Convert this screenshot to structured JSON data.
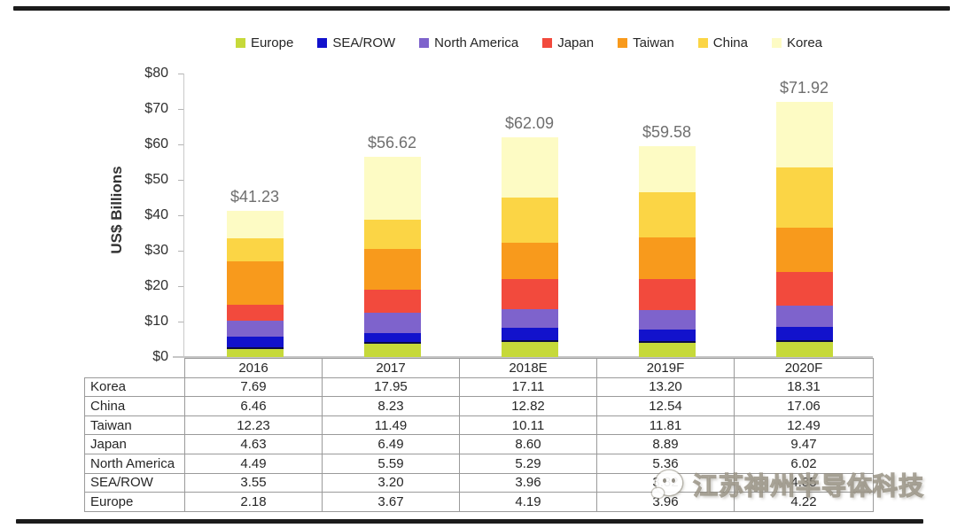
{
  "chart_data": {
    "type": "bar",
    "stacked": true,
    "title": "",
    "ylabel": "US$ Billions",
    "ylim": [
      0,
      80
    ],
    "ytick_labels": [
      "$0",
      "$10",
      "$20",
      "$30",
      "$40",
      "$50",
      "$60",
      "$70",
      "$80"
    ],
    "ytick_step": 10,
    "grid": false,
    "legend_position": "top",
    "categories": [
      "2016",
      "2017",
      "2018E",
      "2019F",
      "2020F"
    ],
    "series": [
      {
        "name": "Europe",
        "color": "#c6d93a",
        "values": [
          2.18,
          3.67,
          4.19,
          3.96,
          4.22
        ]
      },
      {
        "name": "SEA/ROW",
        "color": "#1212cc",
        "values": [
          3.55,
          3.2,
          3.96,
          3.82,
          4.35
        ]
      },
      {
        "name": "North America",
        "color": "#7e63cc",
        "values": [
          4.49,
          5.59,
          5.29,
          5.36,
          6.02
        ]
      },
      {
        "name": "Japan",
        "color": "#f24a3d",
        "values": [
          4.63,
          6.49,
          8.6,
          8.89,
          9.47
        ]
      },
      {
        "name": "Taiwan",
        "color": "#f89a1c",
        "values": [
          12.23,
          11.49,
          10.11,
          11.81,
          12.49
        ]
      },
      {
        "name": "China",
        "color": "#fbd545",
        "values": [
          6.46,
          8.23,
          12.82,
          12.54,
          17.06
        ]
      },
      {
        "name": "Korea",
        "color": "#fdfbc4",
        "values": [
          7.69,
          17.95,
          17.11,
          13.2,
          18.31
        ]
      }
    ],
    "totals": [
      "$41.23",
      "$56.62",
      "$62.09",
      "$59.58",
      "$71.92"
    ]
  },
  "table": {
    "header": [
      "",
      "2016",
      "2017",
      "2018E",
      "2019F",
      "2020F"
    ],
    "rows": [
      {
        "label": "Korea",
        "values": [
          "7.69",
          "17.95",
          "17.11",
          "13.20",
          "18.31"
        ]
      },
      {
        "label": "China",
        "values": [
          "6.46",
          "8.23",
          "12.82",
          "12.54",
          "17.06"
        ]
      },
      {
        "label": "Taiwan",
        "values": [
          "12.23",
          "11.49",
          "10.11",
          "11.81",
          "12.49"
        ]
      },
      {
        "label": "Japan",
        "values": [
          "4.63",
          "6.49",
          "8.60",
          "8.89",
          "9.47"
        ]
      },
      {
        "label": "North America",
        "values": [
          "4.49",
          "5.59",
          "5.29",
          "5.36",
          "6.02"
        ]
      },
      {
        "label": "SEA/ROW",
        "values": [
          "3.55",
          "3.20",
          "3.96",
          "3.82",
          "4.35"
        ]
      },
      {
        "label": "Europe",
        "values": [
          "2.18",
          "3.67",
          "4.19",
          "3.96",
          "4.22"
        ]
      }
    ]
  },
  "watermark": {
    "text": "江苏神州半导体科技",
    "logo": "mascot-face-icon"
  }
}
